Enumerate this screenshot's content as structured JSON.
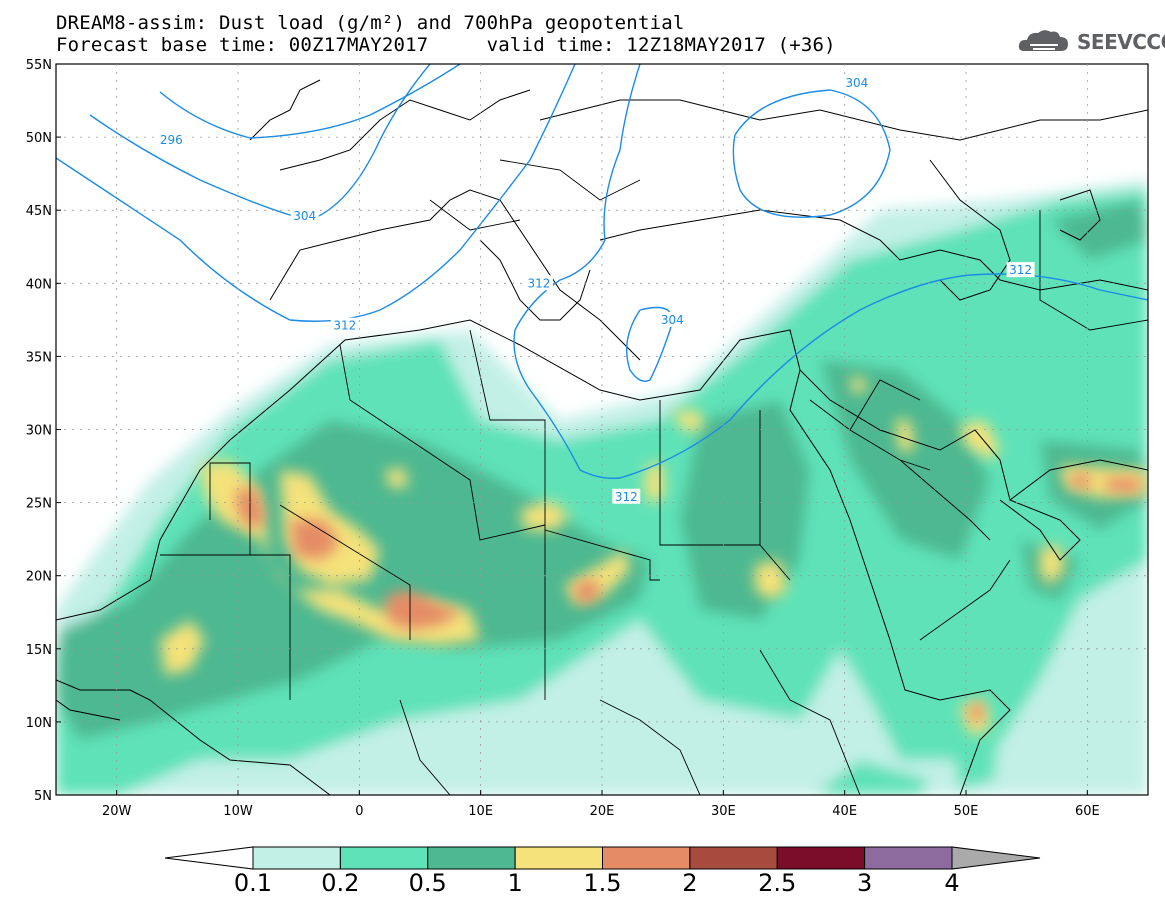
{
  "header": {
    "title_line1": "DREAM8-assim: Dust load (g/m²) and 700hPa geopotential",
    "title_line2": "Forecast base time: 00Z17MAY2017     valid time: 12Z18MAY2017 (+36)",
    "logo_text": "SEEVCCC"
  },
  "map": {
    "lon_range": [
      -25,
      65
    ],
    "lat_range": [
      5,
      55
    ],
    "lon_ticks": [
      {
        "value": -20,
        "label": "20W"
      },
      {
        "value": -10,
        "label": "10W"
      },
      {
        "value": 0,
        "label": "0"
      },
      {
        "value": 10,
        "label": "10E"
      },
      {
        "value": 20,
        "label": "20E"
      },
      {
        "value": 30,
        "label": "30E"
      },
      {
        "value": 40,
        "label": "40E"
      },
      {
        "value": 50,
        "label": "50E"
      },
      {
        "value": 60,
        "label": "60E"
      }
    ],
    "lat_ticks": [
      {
        "value": 55,
        "label": "55N"
      },
      {
        "value": 50,
        "label": "50N"
      },
      {
        "value": 45,
        "label": "45N"
      },
      {
        "value": 40,
        "label": "40N"
      },
      {
        "value": 35,
        "label": "35N"
      },
      {
        "value": 30,
        "label": "30N"
      },
      {
        "value": 25,
        "label": "25N"
      },
      {
        "value": 20,
        "label": "20N"
      },
      {
        "value": 15,
        "label": "15N"
      },
      {
        "value": 10,
        "label": "10N"
      },
      {
        "value": 5,
        "label": "5N"
      }
    ],
    "contour_labels": [
      {
        "text": "296",
        "lon": -15.5,
        "lat": 49.8
      },
      {
        "text": "304",
        "lon": -4.5,
        "lat": 44.6
      },
      {
        "text": "312",
        "lon": -1.2,
        "lat": 37.1
      },
      {
        "text": "312",
        "lon": 14.8,
        "lat": 40.0
      },
      {
        "text": "304",
        "lon": 25.8,
        "lat": 37.5
      },
      {
        "text": "312",
        "lon": 22.0,
        "lat": 25.4
      },
      {
        "text": "304",
        "lon": 41.0,
        "lat": 53.7
      },
      {
        "text": "312",
        "lon": 54.5,
        "lat": 40.9
      }
    ]
  },
  "colorbar": {
    "levels": [
      "0.1",
      "0.2",
      "0.5",
      "1",
      "1.5",
      "2",
      "2.5",
      "3",
      "4"
    ],
    "colors": [
      "#c3f0e6",
      "#5ee2b8",
      "#4db891",
      "#f5e27a",
      "#e58c66",
      "#a64b3d",
      "#7a0e2a",
      "#8e6b9e"
    ],
    "under_color": "#ffffff",
    "over_color": "#aaaaaa"
  }
}
